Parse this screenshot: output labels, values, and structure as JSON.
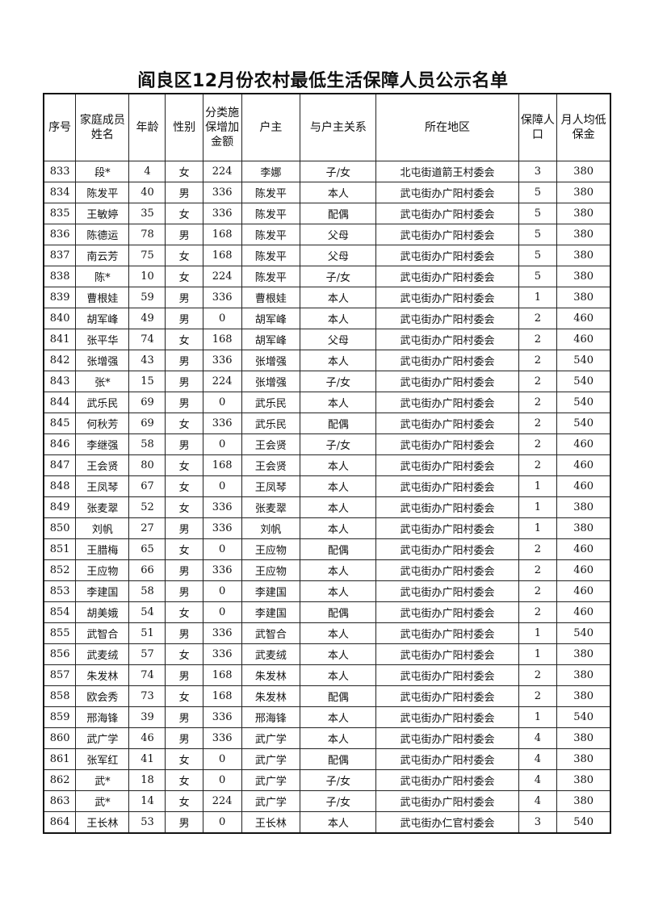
{
  "title": "阎良区12月份农村最低生活保障人员公示名单",
  "columns": [
    "序号",
    "家庭成员姓名",
    "年龄",
    "性别",
    "分类施保增加金额",
    "户主",
    "与户主关系",
    "所在地区",
    "保障人口",
    "月人均低保金"
  ],
  "rows": [
    [
      "833",
      "段*",
      "4",
      "女",
      "224",
      "李娜",
      "子/女",
      "北屯街道箭王村委会",
      "3",
      "380"
    ],
    [
      "834",
      "陈发平",
      "40",
      "男",
      "336",
      "陈发平",
      "本人",
      "武屯街办广阳村委会",
      "5",
      "380"
    ],
    [
      "835",
      "王敏婷",
      "35",
      "女",
      "336",
      "陈发平",
      "配偶",
      "武屯街办广阳村委会",
      "5",
      "380"
    ],
    [
      "836",
      "陈德运",
      "78",
      "男",
      "168",
      "陈发平",
      "父母",
      "武屯街办广阳村委会",
      "5",
      "380"
    ],
    [
      "837",
      "南云芳",
      "75",
      "女",
      "168",
      "陈发平",
      "父母",
      "武屯街办广阳村委会",
      "5",
      "380"
    ],
    [
      "838",
      "陈*",
      "10",
      "女",
      "224",
      "陈发平",
      "子/女",
      "武屯街办广阳村委会",
      "5",
      "380"
    ],
    [
      "839",
      "曹根娃",
      "59",
      "男",
      "336",
      "曹根娃",
      "本人",
      "武屯街办广阳村委会",
      "1",
      "380"
    ],
    [
      "840",
      "胡军峰",
      "49",
      "男",
      "0",
      "胡军峰",
      "本人",
      "武屯街办广阳村委会",
      "2",
      "460"
    ],
    [
      "841",
      "张平华",
      "74",
      "女",
      "168",
      "胡军峰",
      "父母",
      "武屯街办广阳村委会",
      "2",
      "460"
    ],
    [
      "842",
      "张增强",
      "43",
      "男",
      "336",
      "张增强",
      "本人",
      "武屯街办广阳村委会",
      "2",
      "540"
    ],
    [
      "843",
      "张*",
      "15",
      "男",
      "224",
      "张增强",
      "子/女",
      "武屯街办广阳村委会",
      "2",
      "540"
    ],
    [
      "844",
      "武乐民",
      "69",
      "男",
      "0",
      "武乐民",
      "本人",
      "武屯街办广阳村委会",
      "2",
      "540"
    ],
    [
      "845",
      "何秋芳",
      "69",
      "女",
      "336",
      "武乐民",
      "配偶",
      "武屯街办广阳村委会",
      "2",
      "540"
    ],
    [
      "846",
      "李继强",
      "58",
      "男",
      "0",
      "王会贤",
      "子/女",
      "武屯街办广阳村委会",
      "2",
      "460"
    ],
    [
      "847",
      "王会贤",
      "80",
      "女",
      "168",
      "王会贤",
      "本人",
      "武屯街办广阳村委会",
      "2",
      "460"
    ],
    [
      "848",
      "王凤琴",
      "67",
      "女",
      "0",
      "王凤琴",
      "本人",
      "武屯街办广阳村委会",
      "1",
      "460"
    ],
    [
      "849",
      "张麦翠",
      "52",
      "女",
      "336",
      "张麦翠",
      "本人",
      "武屯街办广阳村委会",
      "1",
      "380"
    ],
    [
      "850",
      "刘帆",
      "27",
      "男",
      "336",
      "刘帆",
      "本人",
      "武屯街办广阳村委会",
      "1",
      "380"
    ],
    [
      "851",
      "王腊梅",
      "65",
      "女",
      "0",
      "王应物",
      "配偶",
      "武屯街办广阳村委会",
      "2",
      "460"
    ],
    [
      "852",
      "王应物",
      "66",
      "男",
      "336",
      "王应物",
      "本人",
      "武屯街办广阳村委会",
      "2",
      "460"
    ],
    [
      "853",
      "李建国",
      "58",
      "男",
      "0",
      "李建国",
      "本人",
      "武屯街办广阳村委会",
      "2",
      "460"
    ],
    [
      "854",
      "胡美娥",
      "54",
      "女",
      "0",
      "李建国",
      "配偶",
      "武屯街办广阳村委会",
      "2",
      "460"
    ],
    [
      "855",
      "武智合",
      "51",
      "男",
      "336",
      "武智合",
      "本人",
      "武屯街办广阳村委会",
      "1",
      "540"
    ],
    [
      "856",
      "武麦绒",
      "57",
      "女",
      "336",
      "武麦绒",
      "本人",
      "武屯街办广阳村委会",
      "1",
      "380"
    ],
    [
      "857",
      "朱发林",
      "74",
      "男",
      "168",
      "朱发林",
      "本人",
      "武屯街办广阳村委会",
      "2",
      "380"
    ],
    [
      "858",
      "欧会秀",
      "73",
      "女",
      "168",
      "朱发林",
      "配偶",
      "武屯街办广阳村委会",
      "2",
      "380"
    ],
    [
      "859",
      "邢海锋",
      "39",
      "男",
      "336",
      "邢海锋",
      "本人",
      "武屯街办广阳村委会",
      "1",
      "540"
    ],
    [
      "860",
      "武广学",
      "46",
      "男",
      "336",
      "武广学",
      "本人",
      "武屯街办广阳村委会",
      "4",
      "380"
    ],
    [
      "861",
      "张军红",
      "41",
      "女",
      "0",
      "武广学",
      "配偶",
      "武屯街办广阳村委会",
      "4",
      "380"
    ],
    [
      "862",
      "武*",
      "18",
      "女",
      "0",
      "武广学",
      "子/女",
      "武屯街办广阳村委会",
      "4",
      "380"
    ],
    [
      "863",
      "武*",
      "14",
      "女",
      "224",
      "武广学",
      "子/女",
      "武屯街办广阳村委会",
      "4",
      "380"
    ],
    [
      "864",
      "王长林",
      "53",
      "男",
      "0",
      "王长林",
      "本人",
      "武屯街办仁官村委会",
      "3",
      "540"
    ]
  ]
}
